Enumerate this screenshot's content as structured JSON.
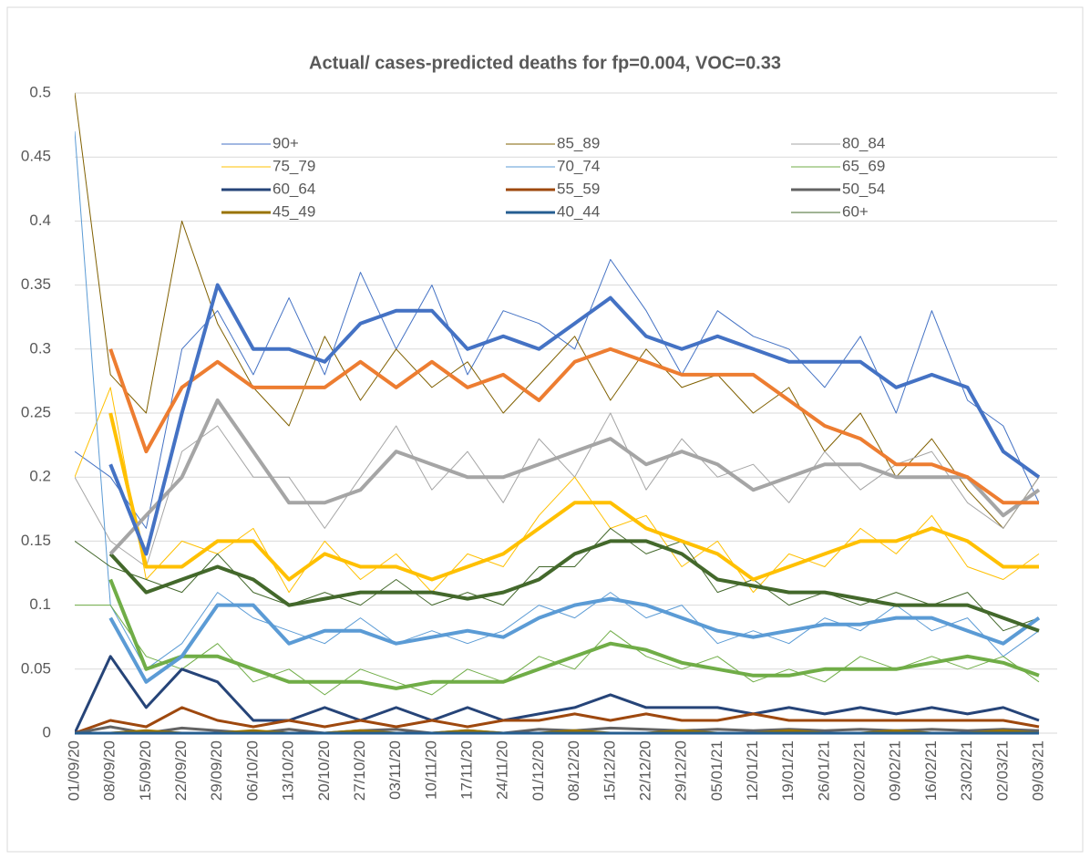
{
  "chart_data": {
    "type": "line",
    "title": "Actual/ cases-predicted deaths for fp=0.004, VOC=0.33",
    "categories": [
      "01/09/20",
      "08/09/20",
      "15/09/20",
      "22/09/20",
      "29/09/20",
      "06/10/20",
      "13/10/20",
      "20/10/20",
      "27/10/20",
      "03/11/20",
      "10/11/20",
      "17/11/20",
      "24/11/20",
      "01/12/20",
      "08/12/20",
      "15/12/20",
      "22/12/20",
      "29/12/20",
      "05/01/21",
      "12/01/21",
      "19/01/21",
      "26/01/21",
      "02/02/21",
      "09/02/21",
      "16/02/21",
      "23/02/21",
      "02/03/21",
      "09/03/21"
    ],
    "ylim": [
      0,
      0.5
    ],
    "yticks": [
      0,
      0.05,
      0.1,
      0.15,
      0.2,
      0.25,
      0.3,
      0.35,
      0.4,
      0.45,
      0.5
    ],
    "grid": true,
    "series": [
      {
        "name": "90+",
        "color": "#4472c4",
        "width": 1,
        "values": [
          0.22,
          0.2,
          0.16,
          0.3,
          0.33,
          0.28,
          0.34,
          0.28,
          0.36,
          0.3,
          0.35,
          0.28,
          0.33,
          0.32,
          0.3,
          0.37,
          0.33,
          0.28,
          0.33,
          0.31,
          0.3,
          0.27,
          0.31,
          0.25,
          0.33,
          0.26,
          0.24,
          0.18
        ]
      },
      {
        "name": "85_89",
        "color": "#806000",
        "width": 1,
        "values": [
          0.5,
          0.28,
          0.25,
          0.4,
          0.32,
          0.27,
          0.24,
          0.31,
          0.26,
          0.3,
          0.27,
          0.29,
          0.25,
          0.28,
          0.31,
          0.26,
          0.3,
          0.27,
          0.28,
          0.25,
          0.27,
          0.22,
          0.25,
          0.2,
          0.23,
          0.19,
          0.16,
          0.2
        ]
      },
      {
        "name": "80_84",
        "color": "#a5a5a5",
        "width": 1,
        "values": [
          0.2,
          0.15,
          0.13,
          0.22,
          0.24,
          0.2,
          0.2,
          0.16,
          0.2,
          0.24,
          0.19,
          0.22,
          0.18,
          0.23,
          0.2,
          0.25,
          0.19,
          0.23,
          0.2,
          0.21,
          0.18,
          0.22,
          0.19,
          0.21,
          0.22,
          0.18,
          0.16,
          0.2
        ]
      },
      {
        "name": "75_79",
        "color": "#ffc000",
        "width": 1,
        "values": [
          0.2,
          0.27,
          0.12,
          0.15,
          0.14,
          0.16,
          0.11,
          0.15,
          0.12,
          0.14,
          0.11,
          0.14,
          0.13,
          0.17,
          0.2,
          0.16,
          0.17,
          0.13,
          0.15,
          0.11,
          0.14,
          0.13,
          0.16,
          0.14,
          0.17,
          0.13,
          0.12,
          0.14
        ]
      },
      {
        "name": "70_74",
        "color": "#5b9bd5",
        "width": 1,
        "values": [
          0.47,
          0.1,
          0.05,
          0.07,
          0.11,
          0.09,
          0.08,
          0.07,
          0.09,
          0.07,
          0.08,
          0.07,
          0.08,
          0.1,
          0.09,
          0.11,
          0.09,
          0.1,
          0.07,
          0.08,
          0.07,
          0.09,
          0.08,
          0.1,
          0.08,
          0.09,
          0.06,
          0.08
        ]
      },
      {
        "name": "65_69",
        "color": "#70ad47",
        "width": 1,
        "values": [
          0.1,
          0.1,
          0.06,
          0.05,
          0.07,
          0.04,
          0.05,
          0.03,
          0.05,
          0.04,
          0.03,
          0.05,
          0.04,
          0.06,
          0.05,
          0.08,
          0.06,
          0.05,
          0.06,
          0.04,
          0.05,
          0.04,
          0.06,
          0.05,
          0.06,
          0.05,
          0.06,
          0.04
        ]
      },
      {
        "name": "60_64",
        "color": "#264478",
        "width": 3,
        "values": [
          0,
          0.06,
          0.02,
          0.05,
          0.04,
          0.01,
          0.01,
          0.02,
          0.01,
          0.02,
          0.01,
          0.02,
          0.01,
          0.015,
          0.02,
          0.03,
          0.02,
          0.02,
          0.02,
          0.015,
          0.02,
          0.015,
          0.02,
          0.015,
          0.02,
          0.015,
          0.02,
          0.01
        ]
      },
      {
        "name": "55_59",
        "color": "#9e480e",
        "width": 3,
        "values": [
          0,
          0.01,
          0.005,
          0.02,
          0.01,
          0.005,
          0.01,
          0.005,
          0.01,
          0.005,
          0.01,
          0.005,
          0.01,
          0.01,
          0.015,
          0.01,
          0.015,
          0.01,
          0.01,
          0.015,
          0.01,
          0.01,
          0.01,
          0.01,
          0.01,
          0.01,
          0.01,
          0.005
        ]
      },
      {
        "name": "50_54",
        "color": "#636363",
        "width": 3,
        "values": [
          0,
          0.005,
          0,
          0.004,
          0.002,
          0,
          0.003,
          0,
          0.002,
          0.003,
          0,
          0.002,
          0,
          0.003,
          0.002,
          0.004,
          0.003,
          0.002,
          0.003,
          0.002,
          0.003,
          0.002,
          0.003,
          0.002,
          0.003,
          0.002,
          0.003,
          0.002
        ]
      },
      {
        "name": "45_49",
        "color": "#997300",
        "width": 3,
        "values": [
          0,
          0,
          0.002,
          0,
          0,
          0.002,
          0,
          0,
          0.002,
          0,
          0,
          0.002,
          0,
          0,
          0.002,
          0,
          0,
          0.002,
          0,
          0,
          0.002,
          0,
          0,
          0.002,
          0,
          0,
          0.002,
          0
        ]
      },
      {
        "name": "40_44",
        "color": "#255e91",
        "width": 3,
        "values": [
          0,
          0,
          0,
          0,
          0,
          0,
          0,
          0,
          0,
          0,
          0,
          0,
          0,
          0,
          0,
          0,
          0,
          0,
          0,
          0,
          0,
          0,
          0,
          0,
          0,
          0,
          0,
          0
        ]
      },
      {
        "name": "60+",
        "color": "#43682b",
        "width": 1,
        "values": [
          0.15,
          0.13,
          0.12,
          0.11,
          0.14,
          0.11,
          0.1,
          0.11,
          0.1,
          0.12,
          0.1,
          0.11,
          0.1,
          0.13,
          0.13,
          0.16,
          0.14,
          0.15,
          0.11,
          0.12,
          0.1,
          0.11,
          0.1,
          0.11,
          0.1,
          0.11,
          0.08,
          0.09
        ]
      },
      {
        "color": "#70ad47",
        "width": 4,
        "values": [
          null,
          0.12,
          0.05,
          0.06,
          0.06,
          0.05,
          0.04,
          0.04,
          0.04,
          0.035,
          0.04,
          0.04,
          0.04,
          0.05,
          0.06,
          0.07,
          0.065,
          0.055,
          0.05,
          0.045,
          0.045,
          0.05,
          0.05,
          0.05,
          0.055,
          0.06,
          0.055,
          0.045
        ]
      },
      {
        "color": "#5b9bd5",
        "width": 4,
        "values": [
          null,
          0.09,
          0.04,
          0.06,
          0.1,
          0.1,
          0.07,
          0.08,
          0.08,
          0.07,
          0.075,
          0.08,
          0.075,
          0.09,
          0.1,
          0.105,
          0.1,
          0.09,
          0.08,
          0.075,
          0.08,
          0.085,
          0.085,
          0.09,
          0.09,
          0.08,
          0.07,
          0.09
        ]
      },
      {
        "color": "#43682b",
        "width": 4,
        "values": [
          null,
          0.14,
          0.11,
          0.12,
          0.13,
          0.12,
          0.1,
          0.105,
          0.11,
          0.11,
          0.11,
          0.105,
          0.11,
          0.12,
          0.14,
          0.15,
          0.15,
          0.14,
          0.12,
          0.115,
          0.11,
          0.11,
          0.105,
          0.1,
          0.1,
          0.1,
          0.09,
          0.08
        ]
      },
      {
        "color": "#ffc000",
        "width": 4,
        "values": [
          null,
          0.25,
          0.13,
          0.13,
          0.15,
          0.15,
          0.12,
          0.14,
          0.13,
          0.13,
          0.12,
          0.13,
          0.14,
          0.16,
          0.18,
          0.18,
          0.16,
          0.15,
          0.14,
          0.12,
          0.13,
          0.14,
          0.15,
          0.15,
          0.16,
          0.15,
          0.13,
          0.13
        ]
      },
      {
        "color": "#a5a5a5",
        "width": 4,
        "values": [
          null,
          0.14,
          0.17,
          0.2,
          0.26,
          0.22,
          0.18,
          0.18,
          0.19,
          0.22,
          0.21,
          0.2,
          0.2,
          0.21,
          0.22,
          0.23,
          0.21,
          0.22,
          0.21,
          0.19,
          0.2,
          0.21,
          0.21,
          0.2,
          0.2,
          0.2,
          0.17,
          0.19
        ]
      },
      {
        "color": "#ed7d31",
        "width": 4,
        "values": [
          null,
          0.3,
          0.22,
          0.27,
          0.29,
          0.27,
          0.27,
          0.27,
          0.29,
          0.27,
          0.29,
          0.27,
          0.28,
          0.26,
          0.29,
          0.3,
          0.29,
          0.28,
          0.28,
          0.28,
          0.26,
          0.24,
          0.23,
          0.21,
          0.21,
          0.2,
          0.18,
          0.18
        ]
      },
      {
        "color": "#4472c4",
        "width": 4,
        "values": [
          null,
          0.21,
          0.14,
          0.25,
          0.35,
          0.3,
          0.3,
          0.29,
          0.32,
          0.33,
          0.33,
          0.3,
          0.31,
          0.3,
          0.32,
          0.34,
          0.31,
          0.3,
          0.31,
          0.3,
          0.29,
          0.29,
          0.29,
          0.27,
          0.28,
          0.27,
          0.22,
          0.2
        ]
      }
    ]
  }
}
